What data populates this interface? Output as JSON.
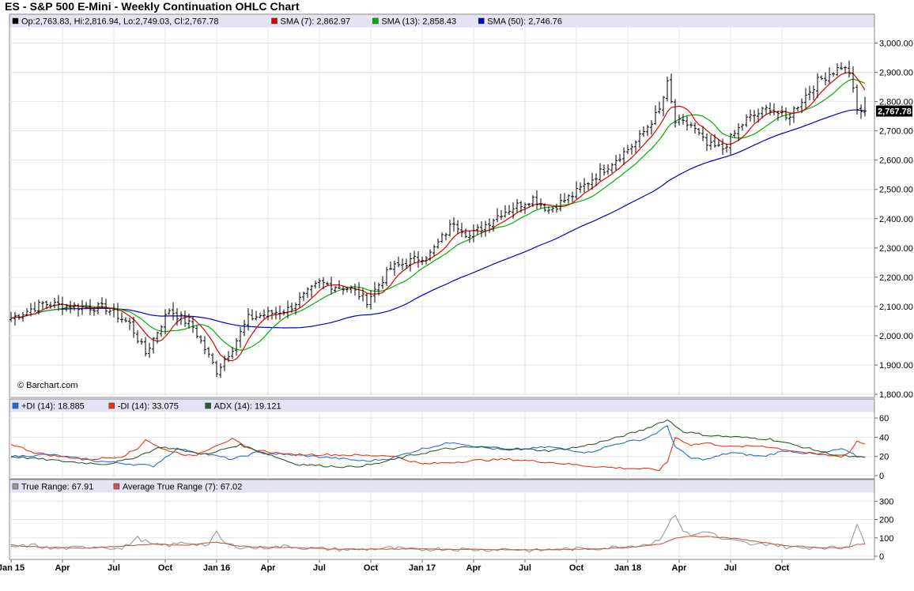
{
  "title": "ES - S&P 500 E-Mini - Weekly Continuation OHLC Chart",
  "copyright": "© Barchart.com",
  "last_price_tag": "2,767.78",
  "colors": {
    "sma7": "#e00000",
    "sma13": "#00b000",
    "sma50": "#0000cc",
    "plusdi": "#1f6fe0",
    "minusdi": "#ee3311",
    "adx": "#2e5c2e",
    "tr": "#999999",
    "atr": "#cc5555"
  },
  "chart_data": [
    {
      "type": "ohlc",
      "panel": "price",
      "legend": [
        {
          "label": "Op:2,763.83, Hi:2,816.94, Lo:2,749.03, Cl:2,767.78",
          "color": "#000000"
        },
        {
          "label": "SMA (7): 2,862.97",
          "color": "#e00000"
        },
        {
          "label": "SMA (13): 2,858.43",
          "color": "#00b000"
        },
        {
          "label": "SMA (50): 2,746.76",
          "color": "#0000cc"
        }
      ],
      "ylim": [
        1800,
        3050
      ],
      "yticks": [
        1800,
        1900,
        2000,
        2100,
        2200,
        2300,
        2400,
        2500,
        2600,
        2700,
        2800,
        2900,
        3000
      ],
      "ytick_labels": [
        "1,800.00",
        "1,900.00",
        "2,000.00",
        "2,100.00",
        "2,200.00",
        "2,300.00",
        "2,400.00",
        "2,500.00",
        "2,600.00",
        "2,700.00",
        "2,800.00",
        "2,900.00",
        "3,000.00"
      ],
      "anchors_close": [
        [
          0,
          2060
        ],
        [
          8,
          2110
        ],
        [
          16,
          2100
        ],
        [
          24,
          2095
        ],
        [
          30,
          2040
        ],
        [
          34,
          1940
        ],
        [
          40,
          2090
        ],
        [
          46,
          2030
        ],
        [
          52,
          1880
        ],
        [
          56,
          1960
        ],
        [
          60,
          2060
        ],
        [
          70,
          2090
        ],
        [
          78,
          2180
        ],
        [
          86,
          2160
        ],
        [
          90,
          2120
        ],
        [
          96,
          2230
        ],
        [
          106,
          2280
        ],
        [
          112,
          2390
        ],
        [
          116,
          2340
        ],
        [
          124,
          2420
        ],
        [
          132,
          2470
        ],
        [
          136,
          2430
        ],
        [
          142,
          2480
        ],
        [
          150,
          2570
        ],
        [
          158,
          2660
        ],
        [
          164,
          2770
        ],
        [
          166,
          2860
        ],
        [
          168,
          2730
        ],
        [
          172,
          2720
        ],
        [
          176,
          2650
        ],
        [
          180,
          2640
        ],
        [
          186,
          2740
        ],
        [
          192,
          2780
        ],
        [
          196,
          2740
        ],
        [
          204,
          2870
        ],
        [
          210,
          2920
        ],
        [
          212,
          2900
        ],
        [
          214,
          2770
        ],
        [
          216,
          2767.78
        ]
      ],
      "last_bar": {
        "open": 2763.83,
        "high": 2816.94,
        "low": 2749.03,
        "close": 2767.78
      },
      "sma_periods": [
        7,
        13,
        50
      ]
    },
    {
      "type": "line",
      "panel": "dmi",
      "legend": [
        {
          "label": "+DI (14): 18.885",
          "color": "#1f6fe0"
        },
        {
          "label": "-DI (14): 33.075",
          "color": "#ee3311"
        },
        {
          "label": "ADX (14): 19.121",
          "color": "#2e5c2e"
        }
      ],
      "ylim": [
        0,
        65
      ],
      "yticks": [
        0,
        20,
        40,
        60
      ],
      "ytick_labels": [
        "0",
        "20",
        "40",
        "60"
      ],
      "series": [
        {
          "name": "+DI (14)",
          "anchors": [
            [
              0,
              20
            ],
            [
              10,
              22
            ],
            [
              20,
              16
            ],
            [
              28,
              13
            ],
            [
              36,
              10
            ],
            [
              42,
              28
            ],
            [
              50,
              22
            ],
            [
              56,
              17
            ],
            [
              62,
              24
            ],
            [
              70,
              22
            ],
            [
              80,
              19
            ],
            [
              90,
              15
            ],
            [
              96,
              18
            ],
            [
              104,
              28
            ],
            [
              112,
              35
            ],
            [
              118,
              30
            ],
            [
              126,
              26
            ],
            [
              136,
              30
            ],
            [
              146,
              24
            ],
            [
              154,
              34
            ],
            [
              160,
              38
            ],
            [
              164,
              46
            ],
            [
              166,
              52
            ],
            [
              168,
              30
            ],
            [
              172,
              18
            ],
            [
              176,
              17
            ],
            [
              182,
              24
            ],
            [
              190,
              20
            ],
            [
              196,
              26
            ],
            [
              204,
              22
            ],
            [
              210,
              28
            ],
            [
              212,
              24
            ],
            [
              214,
              20
            ],
            [
              216,
              18.885
            ]
          ]
        },
        {
          "name": "-DI (14)",
          "anchors": [
            [
              0,
              33
            ],
            [
              6,
              24
            ],
            [
              12,
              20
            ],
            [
              20,
              17
            ],
            [
              28,
              20
            ],
            [
              32,
              28
            ],
            [
              34,
              38
            ],
            [
              38,
              28
            ],
            [
              46,
              20
            ],
            [
              52,
              32
            ],
            [
              56,
              38
            ],
            [
              60,
              28
            ],
            [
              70,
              22
            ],
            [
              80,
              22
            ],
            [
              90,
              21
            ],
            [
              96,
              21
            ],
            [
              104,
              12
            ],
            [
              112,
              14
            ],
            [
              118,
              16
            ],
            [
              126,
              17
            ],
            [
              136,
              14
            ],
            [
              146,
              10
            ],
            [
              154,
              8
            ],
            [
              160,
              7
            ],
            [
              164,
              6
            ],
            [
              166,
              14
            ],
            [
              168,
              40
            ],
            [
              172,
              32
            ],
            [
              176,
              34
            ],
            [
              182,
              30
            ],
            [
              190,
              31
            ],
            [
              196,
              27
            ],
            [
              204,
              22
            ],
            [
              210,
              20
            ],
            [
              212,
              24
            ],
            [
              214,
              36
            ],
            [
              216,
              33.075
            ]
          ]
        },
        {
          "name": "ADX (14)",
          "anchors": [
            [
              0,
              20
            ],
            [
              8,
              17
            ],
            [
              16,
              14
            ],
            [
              24,
              12
            ],
            [
              30,
              17
            ],
            [
              38,
              30
            ],
            [
              44,
              26
            ],
            [
              50,
              22
            ],
            [
              54,
              28
            ],
            [
              58,
              32
            ],
            [
              64,
              24
            ],
            [
              72,
              12
            ],
            [
              80,
              10
            ],
            [
              86,
              9
            ],
            [
              92,
              12
            ],
            [
              100,
              20
            ],
            [
              110,
              28
            ],
            [
              118,
              30
            ],
            [
              128,
              28
            ],
            [
              136,
              26
            ],
            [
              144,
              30
            ],
            [
              152,
              38
            ],
            [
              160,
              48
            ],
            [
              164,
              55
            ],
            [
              166,
              58
            ],
            [
              170,
              46
            ],
            [
              176,
              42
            ],
            [
              184,
              40
            ],
            [
              192,
              38
            ],
            [
              200,
              30
            ],
            [
              208,
              22
            ],
            [
              214,
              19
            ],
            [
              216,
              19.121
            ]
          ]
        }
      ]
    },
    {
      "type": "line",
      "panel": "true-range",
      "legend": [
        {
          "label": "True Range: 67.91",
          "color": "#999999"
        },
        {
          "label": "Average True Range (7): 67.02",
          "color": "#cc5555"
        }
      ],
      "ylim": [
        0,
        340
      ],
      "yticks": [
        0,
        100,
        200,
        300
      ],
      "ytick_labels": [
        "0",
        "100",
        "200",
        "300"
      ],
      "series": [
        {
          "name": "True Range",
          "anchors": [
            [
              0,
              50
            ],
            [
              6,
              60
            ],
            [
              10,
              40
            ],
            [
              16,
              45
            ],
            [
              22,
              55
            ],
            [
              28,
              40
            ],
            [
              32,
              100
            ],
            [
              34,
              80
            ],
            [
              36,
              60
            ],
            [
              40,
              60
            ],
            [
              44,
              75
            ],
            [
              50,
              60
            ],
            [
              52,
              130
            ],
            [
              54,
              70
            ],
            [
              58,
              50
            ],
            [
              62,
              45
            ],
            [
              66,
              50
            ],
            [
              70,
              55
            ],
            [
              74,
              45
            ],
            [
              80,
              40
            ],
            [
              86,
              35
            ],
            [
              92,
              40
            ],
            [
              96,
              45
            ],
            [
              102,
              35
            ],
            [
              108,
              40
            ],
            [
              114,
              38
            ],
            [
              120,
              35
            ],
            [
              126,
              40
            ],
            [
              132,
              30
            ],
            [
              138,
              38
            ],
            [
              144,
              40
            ],
            [
              150,
              45
            ],
            [
              156,
              55
            ],
            [
              162,
              70
            ],
            [
              164,
              95
            ],
            [
              166,
              160
            ],
            [
              168,
              230
            ],
            [
              170,
              140
            ],
            [
              172,
              110
            ],
            [
              176,
              140
            ],
            [
              180,
              90
            ],
            [
              184,
              80
            ],
            [
              188,
              60
            ],
            [
              192,
              70
            ],
            [
              196,
              50
            ],
            [
              200,
              45
            ],
            [
              204,
              50
            ],
            [
              210,
              45
            ],
            [
              212,
              60
            ],
            [
              214,
              180
            ],
            [
              216,
              67.91
            ]
          ]
        },
        {
          "name": "Average True Range (7)",
          "anchors": [
            [
              0,
              60
            ],
            [
              10,
              48
            ],
            [
              20,
              45
            ],
            [
              30,
              58
            ],
            [
              36,
              66
            ],
            [
              44,
              60
            ],
            [
              52,
              78
            ],
            [
              56,
              60
            ],
            [
              62,
              50
            ],
            [
              70,
              48
            ],
            [
              80,
              40
            ],
            [
              90,
              38
            ],
            [
              100,
              40
            ],
            [
              110,
              38
            ],
            [
              120,
              36
            ],
            [
              130,
              35
            ],
            [
              140,
              37
            ],
            [
              150,
              42
            ],
            [
              158,
              50
            ],
            [
              164,
              65
            ],
            [
              166,
              80
            ],
            [
              168,
              100
            ],
            [
              172,
              110
            ],
            [
              178,
              105
            ],
            [
              184,
              95
            ],
            [
              190,
              75
            ],
            [
              196,
              58
            ],
            [
              204,
              48
            ],
            [
              210,
              46
            ],
            [
              212,
              48
            ],
            [
              214,
              65
            ],
            [
              216,
              67.02
            ]
          ]
        }
      ]
    }
  ],
  "x_axis": {
    "tick_labels": [
      "Jan 15",
      "Apr",
      "Jul",
      "Oct",
      "Jan 16",
      "Apr",
      "Jul",
      "Oct",
      "Jan 17",
      "Apr",
      "Jul",
      "Oct",
      "Jan 18",
      "Apr",
      "Jul",
      "Oct"
    ],
    "tick_weeks": [
      0,
      13,
      26,
      39,
      52,
      65,
      78,
      91,
      104,
      117,
      130,
      143,
      156,
      169,
      182,
      195
    ]
  }
}
